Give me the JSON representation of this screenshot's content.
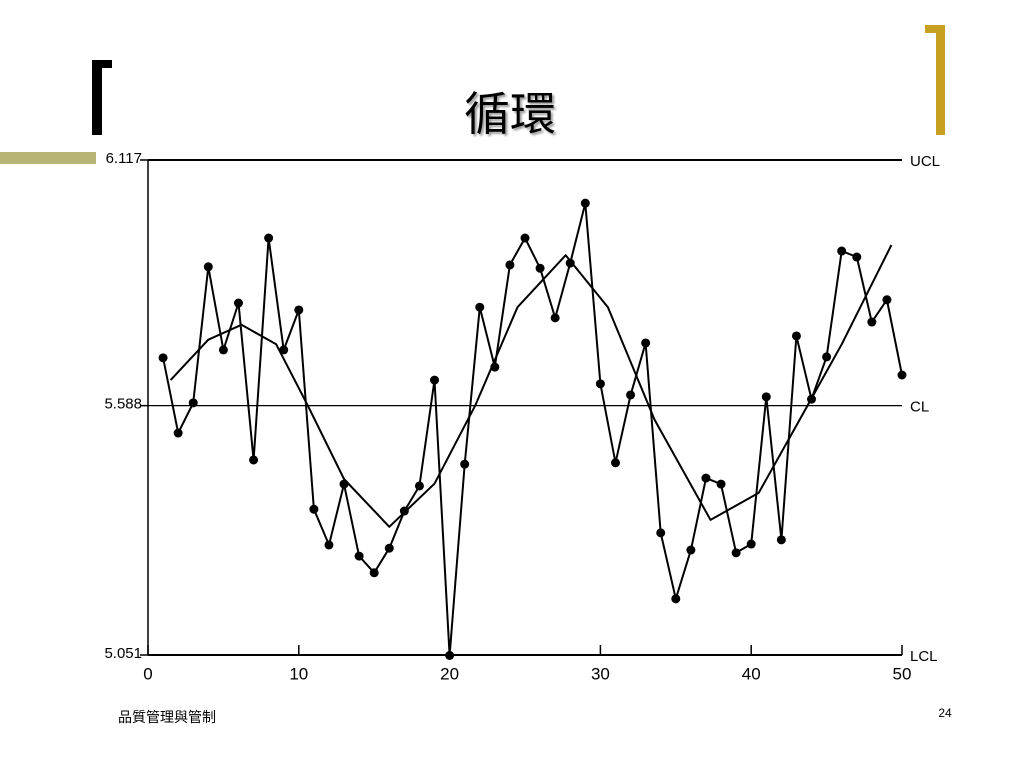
{
  "slide": {
    "title": "循環",
    "footer": "品質管理與管制",
    "page_number": "24"
  },
  "chart_data": {
    "type": "line",
    "x": [
      1,
      2,
      3,
      4,
      5,
      6,
      7,
      8,
      9,
      10,
      11,
      12,
      13,
      14,
      15,
      16,
      17,
      18,
      19,
      20,
      21,
      22,
      23,
      24,
      25,
      26,
      27,
      28,
      29,
      30,
      31,
      32,
      33,
      34,
      35,
      36,
      37,
      38,
      39,
      40,
      41,
      42,
      43,
      44,
      45,
      46,
      47,
      48,
      49,
      50
    ],
    "series": [
      {
        "color": "#000000",
        "markers": true,
        "values": [
          5.691,
          5.529,
          5.594,
          5.887,
          5.708,
          5.809,
          5.471,
          5.949,
          5.708,
          5.794,
          5.365,
          5.288,
          5.419,
          5.264,
          5.228,
          5.281,
          5.361,
          5.415,
          5.643,
          5.05,
          5.462,
          5.8,
          5.671,
          5.891,
          5.949,
          5.884,
          5.777,
          5.895,
          6.024,
          5.635,
          5.465,
          5.611,
          5.723,
          5.314,
          5.172,
          5.277,
          5.432,
          5.419,
          5.271,
          5.29,
          5.607,
          5.299,
          5.738,
          5.602,
          5.693,
          5.921,
          5.908,
          5.768,
          5.816,
          5.654
        ]
      },
      {
        "color": "#000000",
        "markers": false,
        "x": [
          1.5,
          4,
          6.2,
          8.5,
          10.6,
          13,
          16,
          19,
          21.7,
          24.5,
          27.7,
          30.5,
          33.6,
          37.3,
          40.5,
          43.2,
          46,
          49.3
        ],
        "values": [
          5.643,
          5.73,
          5.762,
          5.72,
          5.588,
          5.43,
          5.327,
          5.42,
          5.588,
          5.8,
          5.912,
          5.8,
          5.557,
          5.342,
          5.4,
          5.557,
          5.72,
          5.934
        ]
      }
    ],
    "limits": [
      {
        "name": "UCL",
        "value": 6.117
      },
      {
        "name": "CL",
        "value": 5.588
      },
      {
        "name": "LCL",
        "value": 5.051
      }
    ],
    "xlim": [
      0,
      50
    ],
    "xticks": [
      0,
      10,
      20,
      30,
      40,
      50
    ],
    "ylim": [
      5.051,
      6.117
    ],
    "yticks": [
      5.051,
      5.588,
      6.117
    ]
  }
}
